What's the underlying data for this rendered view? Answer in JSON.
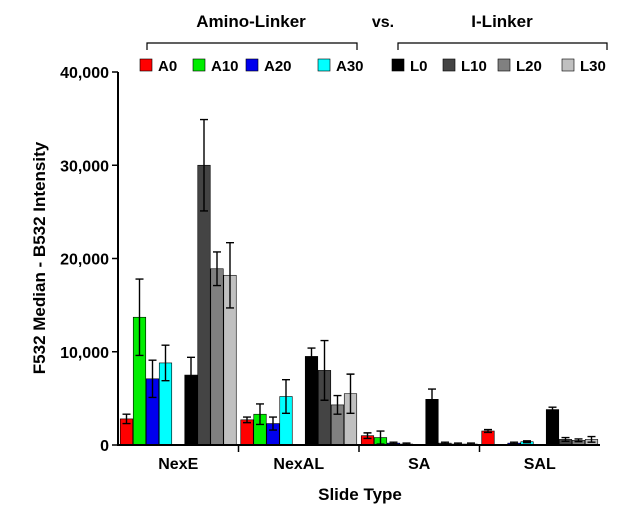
{
  "chart_data": {
    "type": "bar",
    "xlabel": "Slide Type",
    "ylabel": "F532 Median - B532 Intensity",
    "ylim": [
      0,
      40000
    ],
    "yticks": [
      0,
      10000,
      20000,
      30000,
      40000
    ],
    "ytick_labels": [
      "0",
      "10,000",
      "20,000",
      "30,000",
      "40,000"
    ],
    "categories": [
      "NexE",
      "NexAL",
      "SA",
      "SAL"
    ],
    "group_labels": [
      {
        "text": "Amino-Linker",
        "series": [
          0,
          1,
          2,
          3
        ]
      },
      {
        "text": "I-Linker",
        "series": [
          4,
          5,
          6,
          7
        ]
      }
    ],
    "versus_label": "vs.",
    "legend_position": "top",
    "series": [
      {
        "name": "A0",
        "color": "#ff0000",
        "values": [
          2800,
          2700,
          1000,
          1500
        ],
        "errors": [
          500,
          300,
          300,
          150
        ]
      },
      {
        "name": "A10",
        "color": "#00ee00",
        "values": [
          13700,
          3300,
          800,
          0
        ],
        "errors": [
          4100,
          1100,
          700,
          0
        ]
      },
      {
        "name": "A20",
        "color": "#0000ee",
        "values": [
          7100,
          2300,
          200,
          200
        ],
        "errors": [
          2000,
          700,
          100,
          100
        ]
      },
      {
        "name": "A30",
        "color": "#00ffff",
        "values": [
          8800,
          5200,
          100,
          350
        ],
        "errors": [
          1900,
          1800,
          100,
          100
        ]
      },
      {
        "name": "L0",
        "color": "#000000",
        "values": [
          7500,
          9500,
          4900,
          3800
        ],
        "errors": [
          1900,
          900,
          1100,
          250
        ]
      },
      {
        "name": "L10",
        "color": "#444444",
        "values": [
          30000,
          8000,
          200,
          600
        ],
        "errors": [
          4900,
          3200,
          100,
          200
        ]
      },
      {
        "name": "L20",
        "color": "#808080",
        "values": [
          18900,
          4300,
          100,
          500
        ],
        "errors": [
          1800,
          1000,
          100,
          150
        ]
      },
      {
        "name": "L30",
        "color": "#c0c0c0",
        "values": [
          18200,
          5500,
          100,
          600
        ],
        "errors": [
          3500,
          2100,
          100,
          300
        ]
      }
    ]
  }
}
